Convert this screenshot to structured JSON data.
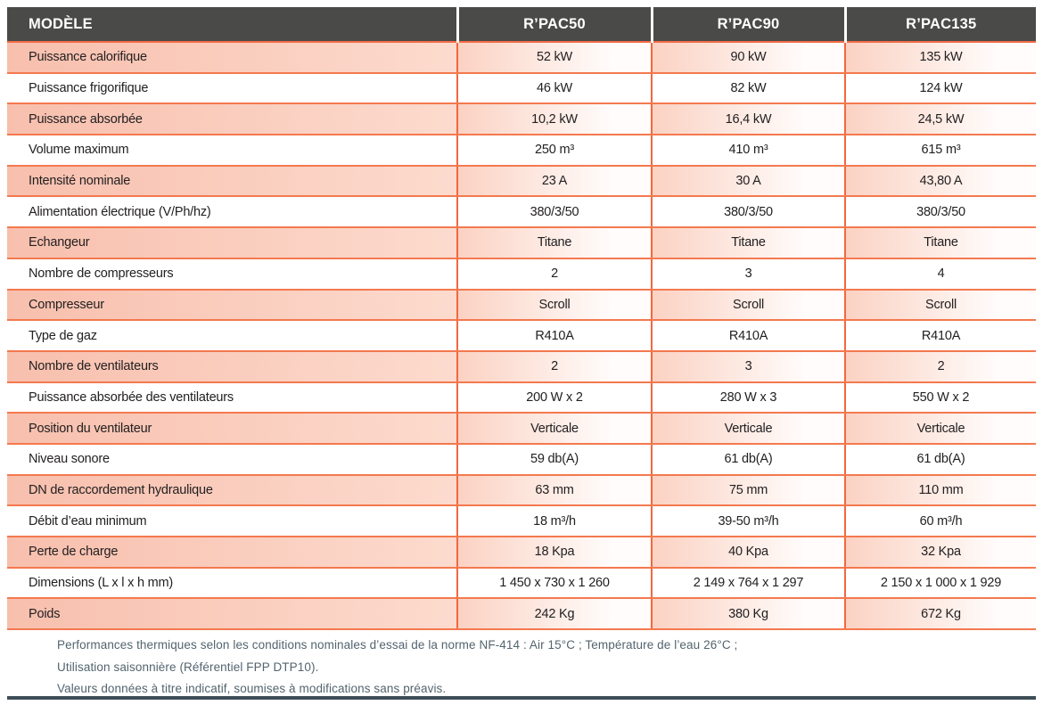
{
  "colors": {
    "header_bg": "#4a4a49",
    "header_text": "#ffffff",
    "grid_orange": "#f2683f",
    "row_salmon_start": "#f8bfad",
    "row_salmon_end": "#fffcfb",
    "cell_text": "#232021",
    "footnote_text": "#53646e",
    "bottom_bar": "#3e4e57"
  },
  "table": {
    "header": {
      "model_label": "MODÈLE",
      "columns": [
        "R’PAC50",
        "R’PAC90",
        "R’PAC135"
      ]
    },
    "rows": [
      {
        "label": "Puissance calorifique",
        "values": [
          "52 kW",
          "90 kW",
          "135 kW"
        ]
      },
      {
        "label": "Puissance frigorifique",
        "values": [
          "46 kW",
          "82 kW",
          "124 kW"
        ]
      },
      {
        "label": "Puissance absorbée",
        "values": [
          "10,2 kW",
          "16,4 kW",
          "24,5 kW"
        ]
      },
      {
        "label": "Volume maximum",
        "values": [
          "250 m³",
          "410 m³",
          "615 m³"
        ]
      },
      {
        "label": "Intensité nominale",
        "values": [
          "23 A",
          "30 A",
          "43,80 A"
        ]
      },
      {
        "label": "Alimentation électrique (V/Ph/hz)",
        "values": [
          "380/3/50",
          "380/3/50",
          "380/3/50"
        ]
      },
      {
        "label": "Echangeur",
        "values": [
          "Titane",
          "Titane",
          "Titane"
        ]
      },
      {
        "label": "Nombre de compresseurs",
        "values": [
          "2",
          "3",
          "4"
        ]
      },
      {
        "label": "Compresseur",
        "values": [
          "Scroll",
          "Scroll",
          "Scroll"
        ]
      },
      {
        "label": "Type de gaz",
        "values": [
          "R410A",
          "R410A",
          "R410A"
        ]
      },
      {
        "label": "Nombre de ventilateurs",
        "values": [
          "2",
          "3",
          "2"
        ]
      },
      {
        "label": "Puissance absorbée des ventilateurs",
        "values": [
          "200 W x 2",
          "280 W x 3",
          "550 W x 2"
        ]
      },
      {
        "label": "Position du ventilateur",
        "values": [
          "Verticale",
          "Verticale",
          "Verticale"
        ]
      },
      {
        "label": "Niveau sonore",
        "values": [
          "59 db(A)",
          "61 db(A)",
          "61 db(A)"
        ]
      },
      {
        "label": "DN de raccordement hydraulique",
        "values": [
          "63 mm",
          "75 mm",
          "110 mm"
        ]
      },
      {
        "label": "Débit d’eau minimum",
        "values": [
          "18 m³/h",
          "39-50 m³/h",
          "60 m³/h"
        ]
      },
      {
        "label": "Perte de charge",
        "values": [
          "18 Kpa",
          "40 Kpa",
          "32 Kpa"
        ]
      },
      {
        "label": "Dimensions (L x l x h mm)",
        "values": [
          "1 450 x 730 x 1 260",
          "2 149 x 764 x 1 297",
          "2 150 x 1 000 x 1 929"
        ]
      },
      {
        "label": "Poids",
        "values": [
          "242 Kg",
          "380 Kg",
          "672 Kg"
        ]
      }
    ]
  },
  "footnotes": {
    "lines": [
      "Performances thermiques selon les conditions nominales d’essai de la norme NF-414 : Air 15°C ; Température de l’eau 26°C ;",
      "Utilisation saisonnière (Référentiel FPP DTP10).",
      "Valeurs données à titre indicatif, soumises à modifications sans préavis."
    ]
  }
}
